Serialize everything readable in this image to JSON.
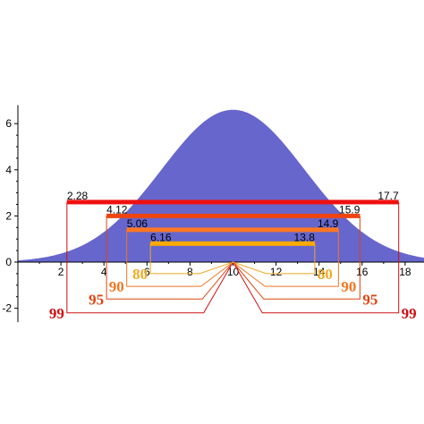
{
  "chart_data": {
    "type": "area",
    "title": "",
    "xlabel": "",
    "ylabel": "",
    "xlim": [
      0,
      19
    ],
    "ylim": [
      -2.6,
      6.8
    ],
    "x_ticks": [
      {
        "value": 2,
        "label": "2"
      },
      {
        "value": 4,
        "label": "4"
      },
      {
        "value": 6,
        "label": "6"
      },
      {
        "value": 8,
        "label": "8"
      },
      {
        "value": 10,
        "label": "10"
      },
      {
        "value": 12,
        "label": "12"
      },
      {
        "value": 14,
        "label": "14"
      },
      {
        "value": 16,
        "label": "16"
      },
      {
        "value": 18,
        "label": "18"
      }
    ],
    "y_ticks": [
      {
        "value": -2,
        "label": "-2"
      },
      {
        "value": 0,
        "label": "0"
      },
      {
        "value": 2,
        "label": "2"
      },
      {
        "value": 4,
        "label": "4"
      },
      {
        "value": 6,
        "label": "6"
      }
    ],
    "grid": false,
    "curve": {
      "shape": "normal",
      "mean": 10,
      "sd": 3.33,
      "peak": 6.6,
      "color": "#6666cc"
    },
    "intervals": [
      {
        "level": "99",
        "lower": 2.28,
        "upper": 17.7,
        "lower_label": "2.28",
        "upper_label": "17.7",
        "y": 2.6,
        "label_y": -2.2,
        "bar_color": "#ee1111",
        "line_color": "#cc1111",
        "text_color": "#cc1111"
      },
      {
        "level": "95",
        "lower": 4.12,
        "upper": 15.9,
        "lower_label": "4.12",
        "upper_label": "15.9",
        "y": 2.0,
        "label_y": -1.6,
        "bar_color": "#ee4411",
        "line_color": "#dd4411",
        "text_color": "#dd4411"
      },
      {
        "level": "90",
        "lower": 5.06,
        "upper": 14.9,
        "lower_label": "5.06",
        "upper_label": "14.9",
        "y": 1.4,
        "label_y": -1.05,
        "bar_color": "#ff7722",
        "line_color": "#ee7722",
        "text_color": "#ee7722"
      },
      {
        "level": "80",
        "lower": 6.16,
        "upper": 13.8,
        "lower_label": "6.16",
        "upper_label": "13.8",
        "y": 0.8,
        "label_y": -0.5,
        "bar_color": "#ffaa00",
        "line_color": "#eeaa22",
        "text_color": "#eeaa22"
      }
    ]
  }
}
